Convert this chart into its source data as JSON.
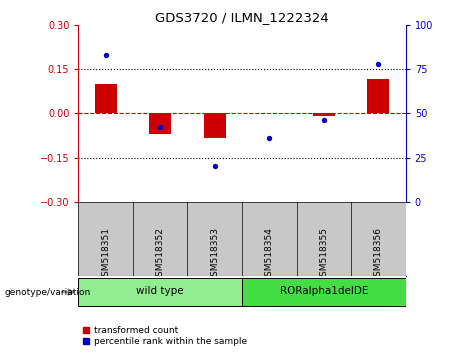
{
  "title": "GDS3720 / ILMN_1222324",
  "samples": [
    "GSM518351",
    "GSM518352",
    "GSM518353",
    "GSM518354",
    "GSM518355",
    "GSM518356"
  ],
  "transformed_count": [
    0.1,
    -0.07,
    -0.085,
    0.0,
    -0.01,
    0.115
  ],
  "percentile_rank": [
    83,
    42,
    20,
    36,
    46,
    78
  ],
  "ylim_left": [
    -0.3,
    0.3
  ],
  "ylim_right": [
    0,
    100
  ],
  "yticks_left": [
    -0.3,
    -0.15,
    0,
    0.15,
    0.3
  ],
  "yticks_right": [
    0,
    25,
    50,
    75,
    100
  ],
  "bar_color": "#cc0000",
  "scatter_color": "#0000cc",
  "zero_line_color": "#cc0000",
  "dotted_line_color": "black",
  "groups": [
    {
      "label": "wild type",
      "indices": [
        0,
        1,
        2
      ],
      "color": "#90ee90"
    },
    {
      "label": "RORalpha1delDE",
      "indices": [
        3,
        4,
        5
      ],
      "color": "#44dd44"
    }
  ],
  "group_label": "genotype/variation",
  "legend_bar": "transformed count",
  "legend_scatter": "percentile rank within the sample",
  "bg_color": "#ffffff",
  "xlabel_bg": "#c8c8c8",
  "bar_width": 0.4
}
